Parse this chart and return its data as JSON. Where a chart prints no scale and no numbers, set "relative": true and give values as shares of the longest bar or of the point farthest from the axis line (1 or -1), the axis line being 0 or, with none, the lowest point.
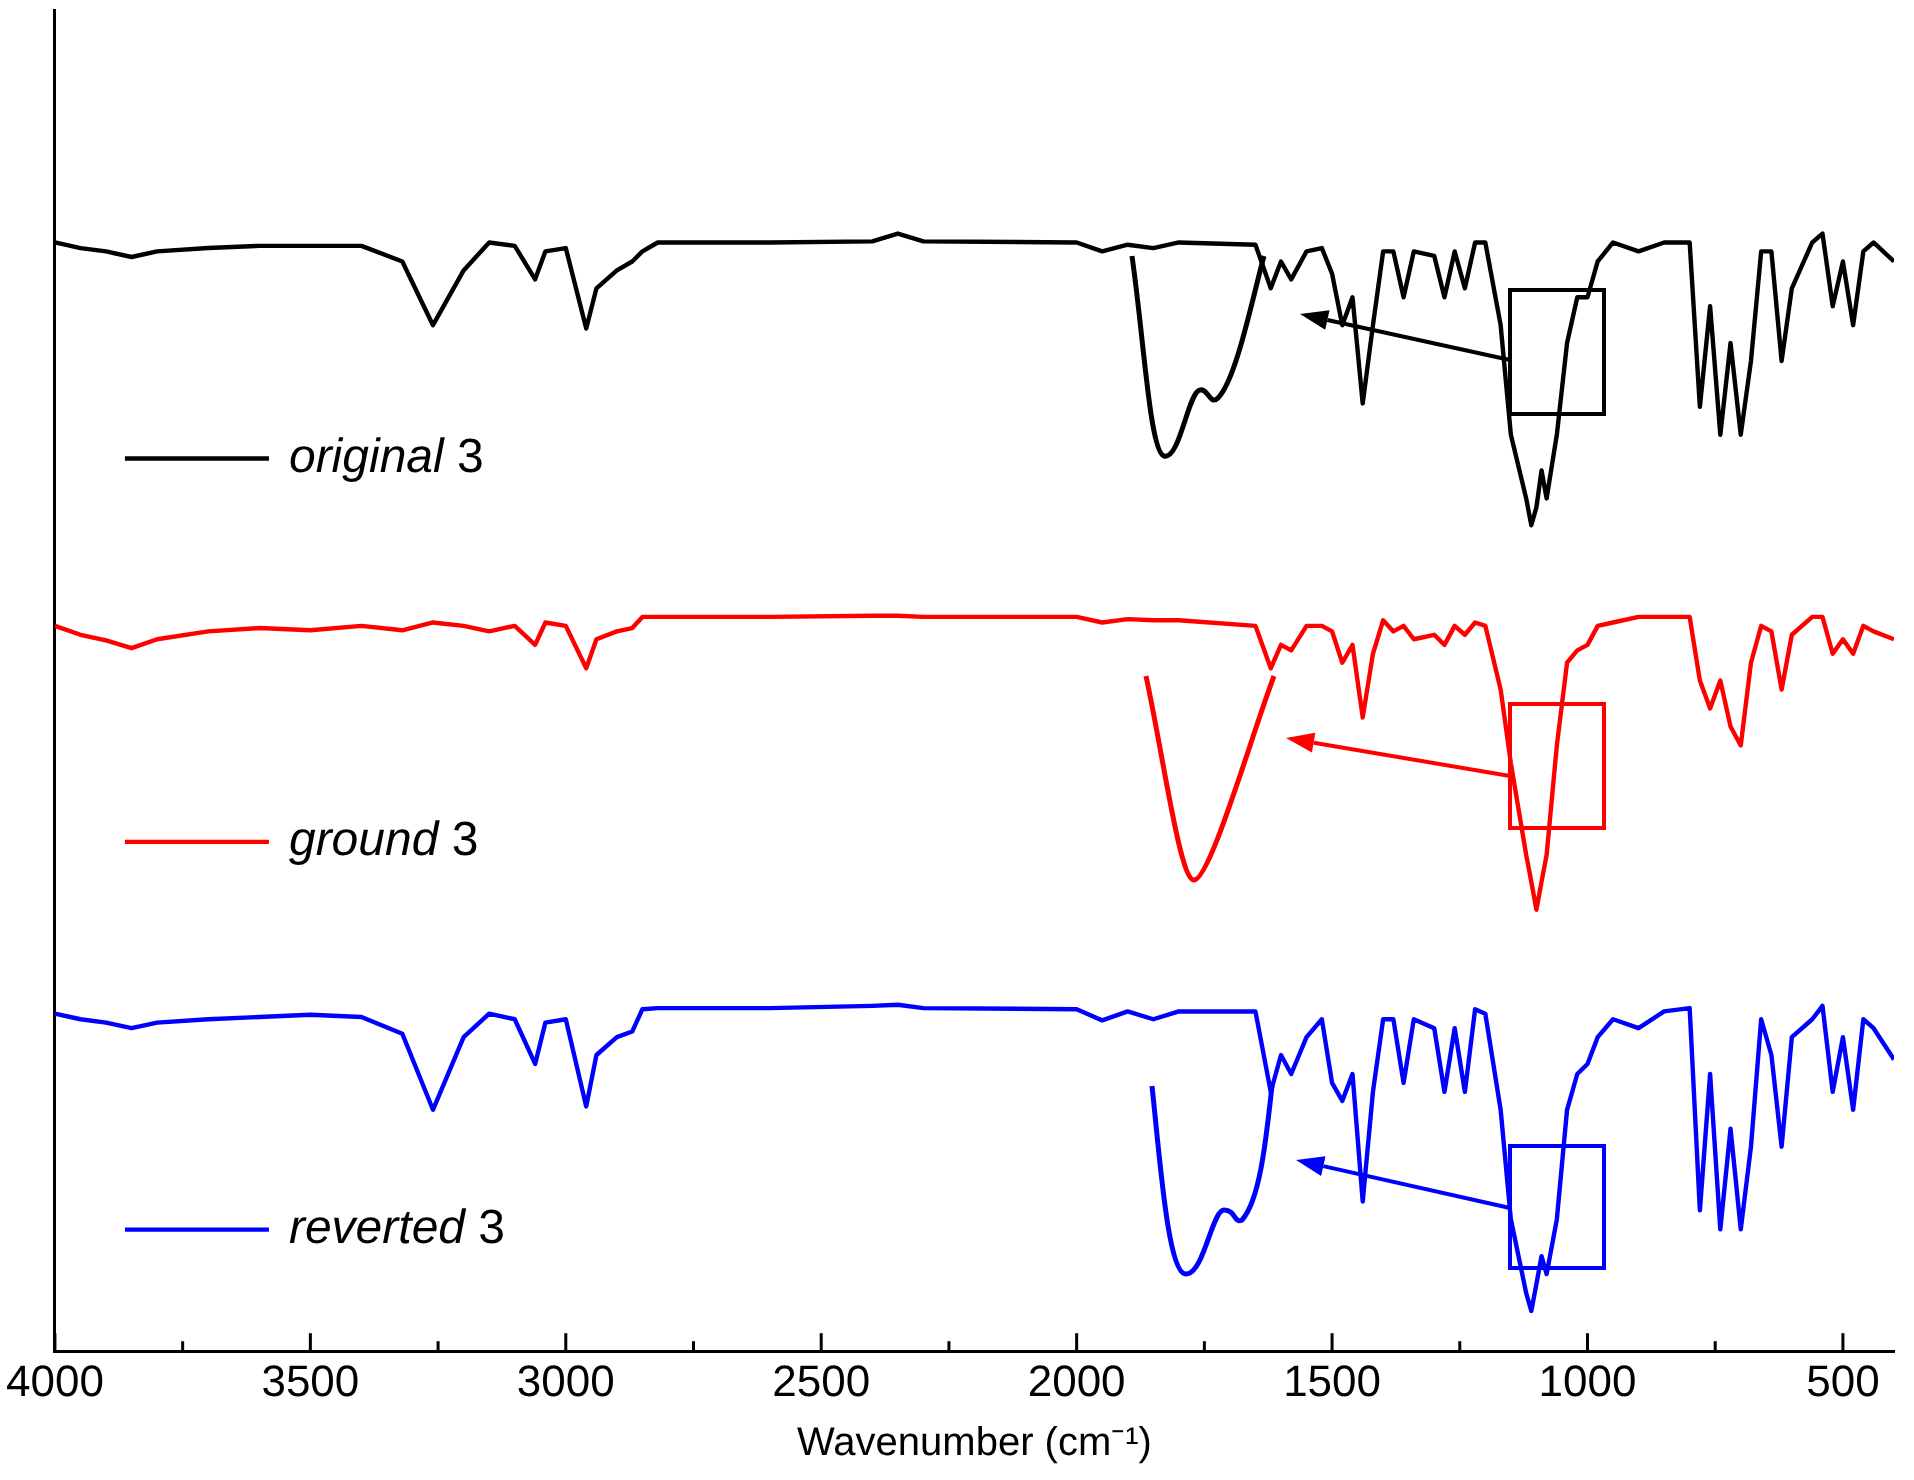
{
  "chart_data": {
    "type": "line",
    "relative": true,
    "xlabel": "Wavenumber (cm⁻¹)",
    "xlim": [
      4000,
      400
    ],
    "xticks": [
      4000,
      {
        "value": 3750,
        "label": null
      },
      3500,
      {
        "value": 3250,
        "label": null
      },
      3000,
      {
        "value": 2750,
        "label": null
      },
      2500,
      {
        "value": 2250,
        "label": null
      },
      2000,
      {
        "value": 1750,
        "label": null
      },
      1500,
      {
        "value": 1250,
        "label": null
      },
      1000,
      {
        "value": 750,
        "label": null
      },
      500
    ],
    "x": [
      4000,
      3950,
      3900,
      3850,
      3800,
      3700,
      3600,
      3500,
      3400,
      3320,
      3260,
      3200,
      3150,
      3100,
      3060,
      3040,
      3000,
      2960,
      2940,
      2900,
      2870,
      2850,
      2820,
      2600,
      2400,
      2350,
      2300,
      2000,
      1950,
      1900,
      1850,
      1800,
      1650,
      1620,
      1600,
      1580,
      1550,
      1520,
      1500,
      1480,
      1460,
      1440,
      1420,
      1400,
      1380,
      1360,
      1340,
      1300,
      1280,
      1260,
      1240,
      1220,
      1200,
      1170,
      1150,
      1120,
      1110,
      1100,
      1090,
      1080,
      1060,
      1040,
      1020,
      1000,
      980,
      950,
      900,
      850,
      800,
      780,
      760,
      740,
      720,
      700,
      680,
      660,
      640,
      620,
      600,
      560,
      540,
      520,
      500,
      480,
      460,
      440,
      400
    ],
    "legend": "left",
    "grid": false,
    "marker": "none",
    "line_style": "solid",
    "series": [
      {
        "name": "original 3",
        "color": "#000000",
        "values": [
          0.992,
          0.987,
          0.984,
          0.979,
          0.984,
          0.987,
          0.989,
          0.989,
          0.989,
          0.975,
          0.918,
          0.967,
          0.992,
          0.989,
          0.959,
          0.984,
          0.987,
          0.915,
          0.951,
          0.967,
          0.975,
          0.984,
          0.992,
          0.992,
          0.993,
          1.0,
          0.993,
          0.992,
          0.984,
          0.99,
          0.987,
          0.992,
          0.99,
          0.951,
          0.975,
          0.959,
          0.984,
          0.987,
          0.964,
          0.918,
          0.943,
          0.848,
          0.918,
          0.984,
          0.984,
          0.943,
          0.984,
          0.98,
          0.943,
          0.984,
          0.951,
          0.992,
          0.992,
          0.918,
          0.82,
          0.763,
          0.739,
          0.755,
          0.788,
          0.763,
          0.82,
          0.902,
          0.943,
          0.943,
          0.975,
          0.992,
          0.984,
          0.992,
          0.992,
          0.845,
          0.935,
          0.82,
          0.902,
          0.82,
          0.886,
          0.984,
          0.984,
          0.886,
          0.951,
          0.992,
          1.0,
          0.935,
          0.975,
          0.918,
          0.984,
          0.992,
          0.975
        ]
      },
      {
        "name": "ground 3",
        "color": "#ff0000",
        "values": [
          0.649,
          0.641,
          0.636,
          0.629,
          0.637,
          0.644,
          0.647,
          0.645,
          0.649,
          0.645,
          0.652,
          0.649,
          0.644,
          0.649,
          0.632,
          0.652,
          0.649,
          0.611,
          0.637,
          0.644,
          0.647,
          0.657,
          0.657,
          0.657,
          0.658,
          0.658,
          0.657,
          0.657,
          0.652,
          0.655,
          0.654,
          0.654,
          0.649,
          0.611,
          0.632,
          0.627,
          0.649,
          0.649,
          0.644,
          0.616,
          0.632,
          0.567,
          0.624,
          0.654,
          0.644,
          0.649,
          0.637,
          0.641,
          0.632,
          0.649,
          0.641,
          0.652,
          0.649,
          0.592,
          0.526,
          0.444,
          0.42,
          0.395,
          0.42,
          0.444,
          0.542,
          0.616,
          0.627,
          0.632,
          0.649,
          0.652,
          0.657,
          0.657,
          0.657,
          0.6,
          0.575,
          0.6,
          0.559,
          0.542,
          0.616,
          0.649,
          0.644,
          0.592,
          0.641,
          0.657,
          0.657,
          0.624,
          0.637,
          0.624,
          0.649,
          0.644,
          0.637
        ]
      },
      {
        "name": "reverted 3",
        "color": "#0000ff",
        "values": [
          0.302,
          0.297,
          0.294,
          0.289,
          0.294,
          0.297,
          0.299,
          0.301,
          0.299,
          0.284,
          0.216,
          0.281,
          0.302,
          0.297,
          0.257,
          0.294,
          0.297,
          0.219,
          0.265,
          0.281,
          0.286,
          0.306,
          0.307,
          0.307,
          0.309,
          0.31,
          0.307,
          0.306,
          0.296,
          0.304,
          0.297,
          0.304,
          0.304,
          0.232,
          0.265,
          0.248,
          0.281,
          0.297,
          0.24,
          0.224,
          0.248,
          0.134,
          0.232,
          0.297,
          0.297,
          0.24,
          0.297,
          0.289,
          0.232,
          0.289,
          0.232,
          0.306,
          0.302,
          0.216,
          0.118,
          0.052,
          0.036,
          0.06,
          0.085,
          0.069,
          0.118,
          0.216,
          0.248,
          0.257,
          0.281,
          0.297,
          0.289,
          0.304,
          0.307,
          0.126,
          0.248,
          0.109,
          0.199,
          0.109,
          0.183,
          0.297,
          0.265,
          0.183,
          0.281,
          0.297,
          0.309,
          0.232,
          0.281,
          0.216,
          0.297,
          0.289,
          0.261
        ]
      }
    ]
  }
}
